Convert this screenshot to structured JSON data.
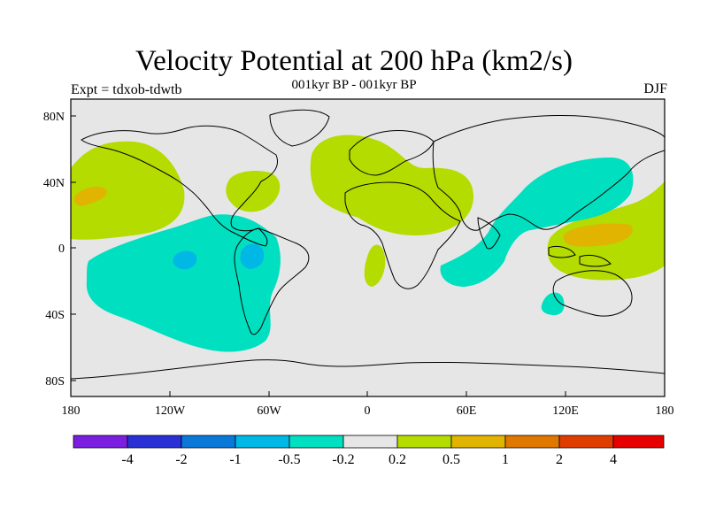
{
  "title": "Velocity Potential at 200 hPa (km2/s)",
  "subtitle": "001kyr BP - 001kyr BP",
  "left_label": "Expt = tdxob-tdwtb",
  "right_label": "DJF",
  "map": {
    "lon_range": [
      -180,
      180
    ],
    "lat_range": [
      -90,
      90
    ],
    "background_color": "#e6e6e6",
    "x_ticks": [
      "180",
      "120W",
      "60W",
      "0",
      "60E",
      "120E",
      "180"
    ],
    "y_ticks": [
      "80N",
      "40N",
      "0",
      "40S",
      "80S"
    ]
  },
  "colorbar": {
    "colors": [
      "#7a1ee0",
      "#2830d6",
      "#0a78d8",
      "#00b8e6",
      "#00e0c0",
      "#e6e6e6",
      "#b4dc00",
      "#e0b400",
      "#e07800",
      "#e03c00",
      "#e60000"
    ],
    "labels": [
      "-4",
      "-2",
      "-1",
      "-0.5",
      "-0.2",
      "0.2",
      "0.5",
      "1",
      "2",
      "4"
    ]
  }
}
